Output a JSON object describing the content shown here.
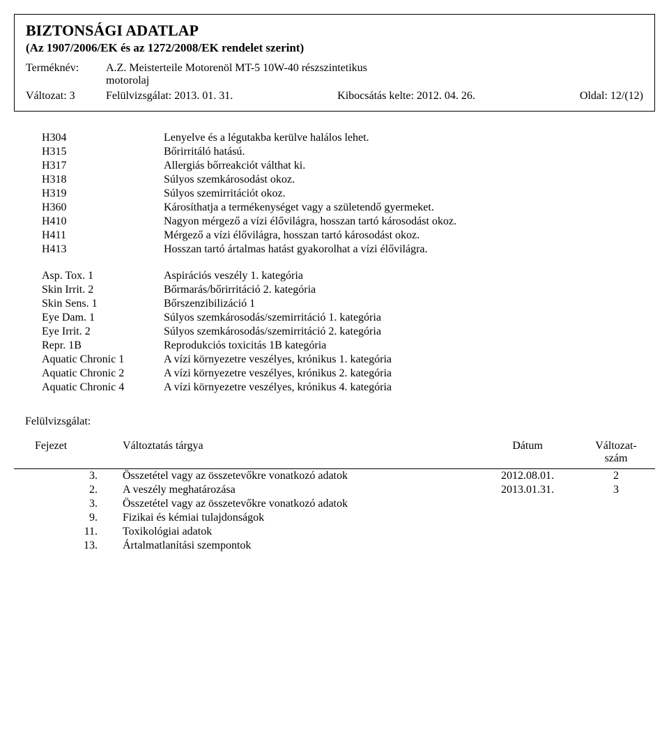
{
  "header": {
    "title": "BIZTONSÁGI ADATLAP",
    "subtitle": "(Az 1907/2006/EK és az 1272/2008/EK rendelet szerint)",
    "product_label": "Terméknév:",
    "product_line1": "A.Z. Meisterteile Motorenöl MT-5 10W-40 részszintetikus",
    "product_line2": "motorolaj",
    "version_label": "Változat: 3",
    "revision_label": "Felülvizsgálat: 2013. 01. 31.",
    "issue_label": "Kibocsátás kelte: 2012. 04. 26.",
    "page_label": "Oldal: 12/(12)"
  },
  "hcodes": [
    {
      "code": "H304",
      "text": "Lenyelve és a légutakba kerülve halálos lehet."
    },
    {
      "code": "H315",
      "text": "Bőrirritáló hatású."
    },
    {
      "code": "H317",
      "text": "Allergiás bőrreakciót válthat ki."
    },
    {
      "code": "H318",
      "text": "Súlyos szemkárosodást okoz."
    },
    {
      "code": "H319",
      "text": "Súlyos szemirritációt okoz."
    },
    {
      "code": "H360",
      "text": "Károsíthatja a termékenységet vagy a születendő gyermeket."
    },
    {
      "code": "H410",
      "text": "Nagyon mérgező a vízi élővilágra, hosszan tartó károsodást okoz."
    },
    {
      "code": "H411",
      "text": "Mérgező a vízi élővilágra, hosszan tartó károsodást okoz."
    },
    {
      "code": "H413",
      "text": "Hosszan tartó ártalmas hatást gyakorolhat a vízi élővilágra."
    }
  ],
  "classes": [
    {
      "code": "Asp. Tox. 1",
      "text": "Aspirációs veszély 1. kategória"
    },
    {
      "code": "Skin Irrit. 2",
      "text": "Bőrmarás/bőrirritáció 2. kategória"
    },
    {
      "code": "Skin Sens. 1",
      "text": "Bőrszenzibilizáció 1"
    },
    {
      "code": "Eye Dam. 1",
      "text": "Súlyos szemkárosodás/szemirritáció 1. kategória"
    },
    {
      "code": "Eye Irrit. 2",
      "text": "Súlyos szemkárosodás/szemirritáció 2. kategória"
    },
    {
      "code": "Repr. 1B",
      "text": "Reprodukciós toxicitás 1B kategória"
    },
    {
      "code": "Aquatic Chronic 1",
      "text": "A vízi környezetre veszélyes, krónikus 1. kategória"
    },
    {
      "code": "Aquatic Chronic 2",
      "text": "A vízi környezetre veszélyes, krónikus 2. kategória"
    },
    {
      "code": "Aquatic Chronic 4",
      "text": "A vízi környezetre veszélyes, krónikus 4. kategória"
    }
  ],
  "revision": {
    "heading": "Felülvizsgálat:",
    "columns": {
      "chapter": "Fejezet",
      "subject": "Változtatás tárgya",
      "date": "Dátum",
      "version_l1": "Változat-",
      "version_l2": "szám"
    },
    "rows": [
      {
        "chapter": "3.",
        "subject": "Összetétel vagy az összetevőkre vonatkozó adatok",
        "date": "2012.08.01.",
        "version": "2"
      },
      {
        "chapter": "2.",
        "subject": "A veszély meghatározása",
        "date": "2013.01.31.",
        "version": "3"
      },
      {
        "chapter": "3.",
        "subject": "Összetétel vagy az összetevőkre vonatkozó adatok",
        "date": "",
        "version": ""
      },
      {
        "chapter": "9.",
        "subject": "Fizikai és kémiai tulajdonságok",
        "date": "",
        "version": ""
      },
      {
        "chapter": "11.",
        "subject": "Toxikológiai adatok",
        "date": "",
        "version": ""
      },
      {
        "chapter": "13.",
        "subject": "Ártalmatlanítási szempontok",
        "date": "",
        "version": ""
      }
    ]
  }
}
